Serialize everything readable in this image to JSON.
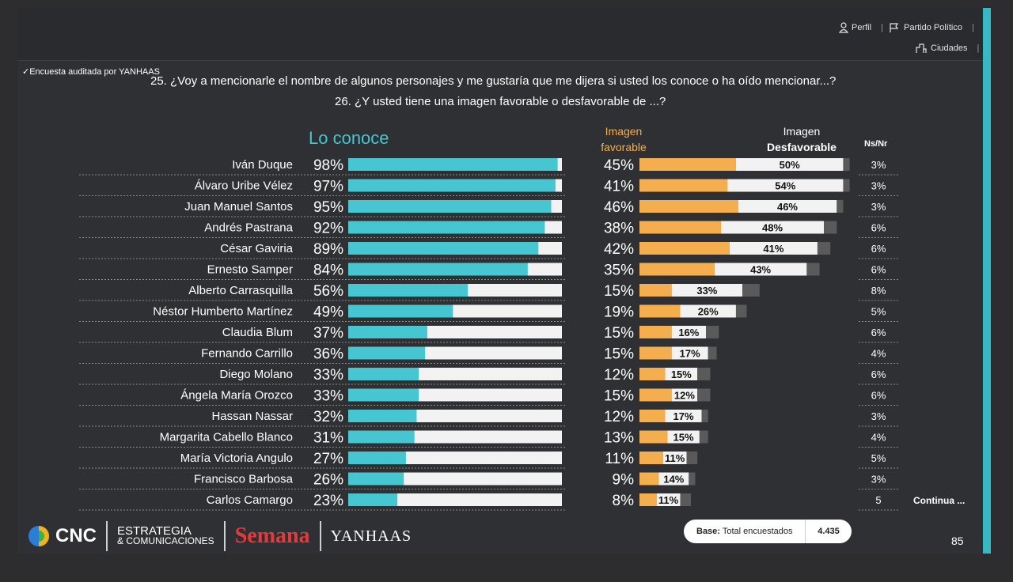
{
  "nav": {
    "perfil": "Perfil",
    "partido": "Partido Político",
    "ciudades": "Ciudades"
  },
  "audit": "✓Encuesta auditada por YANHAAS",
  "questions": {
    "q25": "25. ¿Voy a mencionarle el nombre de algunos personajes y me gustaría que me dijera si usted los conoce o ha oído mencionar...?",
    "q26": "26. ¿Y usted tiene una imagen favorable o desfavorable de ...?"
  },
  "headers": {
    "known": "Lo conoce",
    "fav_1": "Imagen",
    "fav_2": "favorable",
    "desf_1": "Imagen",
    "desf_2": "Desfavorable",
    "ns": "Ns/Nr"
  },
  "colors": {
    "known": "#45c6d1",
    "fav": "#f4ae4e",
    "desf": "#f2f2f2",
    "ns": "#5a5a5a",
    "bg": "#2f3033",
    "accent": "#37b9c4"
  },
  "continua": "Continua ...",
  "base": {
    "label_bold": "Base:",
    "label": "Total encuestados",
    "value": "4.435"
  },
  "page_number": "85",
  "logos": {
    "cnc": "CNC",
    "estrategia_1": "ESTRATEGIA",
    "estrategia_2": "& COMUNICACIONES",
    "semana": "Semana",
    "yanhaas": "YANHAAS"
  },
  "chart_data": {
    "type": "bar",
    "orientation": "horizontal",
    "series_names": [
      "Lo conoce",
      "Imagen favorable",
      "Imagen Desfavorable",
      "Ns/Nr"
    ],
    "categories": [
      "Iván Duque",
      "Álvaro Uribe Vélez",
      "Juan Manuel Santos",
      "Andrés Pastrana",
      "César Gaviria",
      "Ernesto Samper",
      "Alberto Carrasquilla",
      "Néstor Humberto Martínez",
      "Claudia Blum",
      "Fernando Carrillo",
      "Diego Molano",
      "Ángela María Orozco",
      "Hassan Nassar",
      "Margarita Cabello Blanco",
      "María Victoria Angulo",
      "Francisco Barbosa",
      "Carlos Camargo"
    ],
    "known": [
      98,
      97,
      95,
      92,
      89,
      84,
      56,
      49,
      37,
      36,
      33,
      33,
      32,
      31,
      27,
      26,
      23
    ],
    "favorable": [
      45,
      41,
      46,
      38,
      42,
      35,
      15,
      19,
      15,
      15,
      12,
      15,
      12,
      13,
      11,
      9,
      8
    ],
    "unfavorable": [
      50,
      54,
      46,
      48,
      41,
      43,
      33,
      26,
      16,
      17,
      15,
      12,
      17,
      15,
      11,
      14,
      11
    ],
    "nsnr": [
      3,
      3,
      3,
      6,
      6,
      6,
      8,
      5,
      6,
      4,
      6,
      6,
      3,
      4,
      5,
      3,
      5
    ],
    "nsnr_labels": [
      "3%",
      "3%",
      "3%",
      "6%",
      "6%",
      "6%",
      "8%",
      "5%",
      "6%",
      "4%",
      "6%",
      "6%",
      "3%",
      "4%",
      "5%",
      "3%",
      "5"
    ],
    "unit": "%",
    "xlim": [
      0,
      100
    ]
  }
}
